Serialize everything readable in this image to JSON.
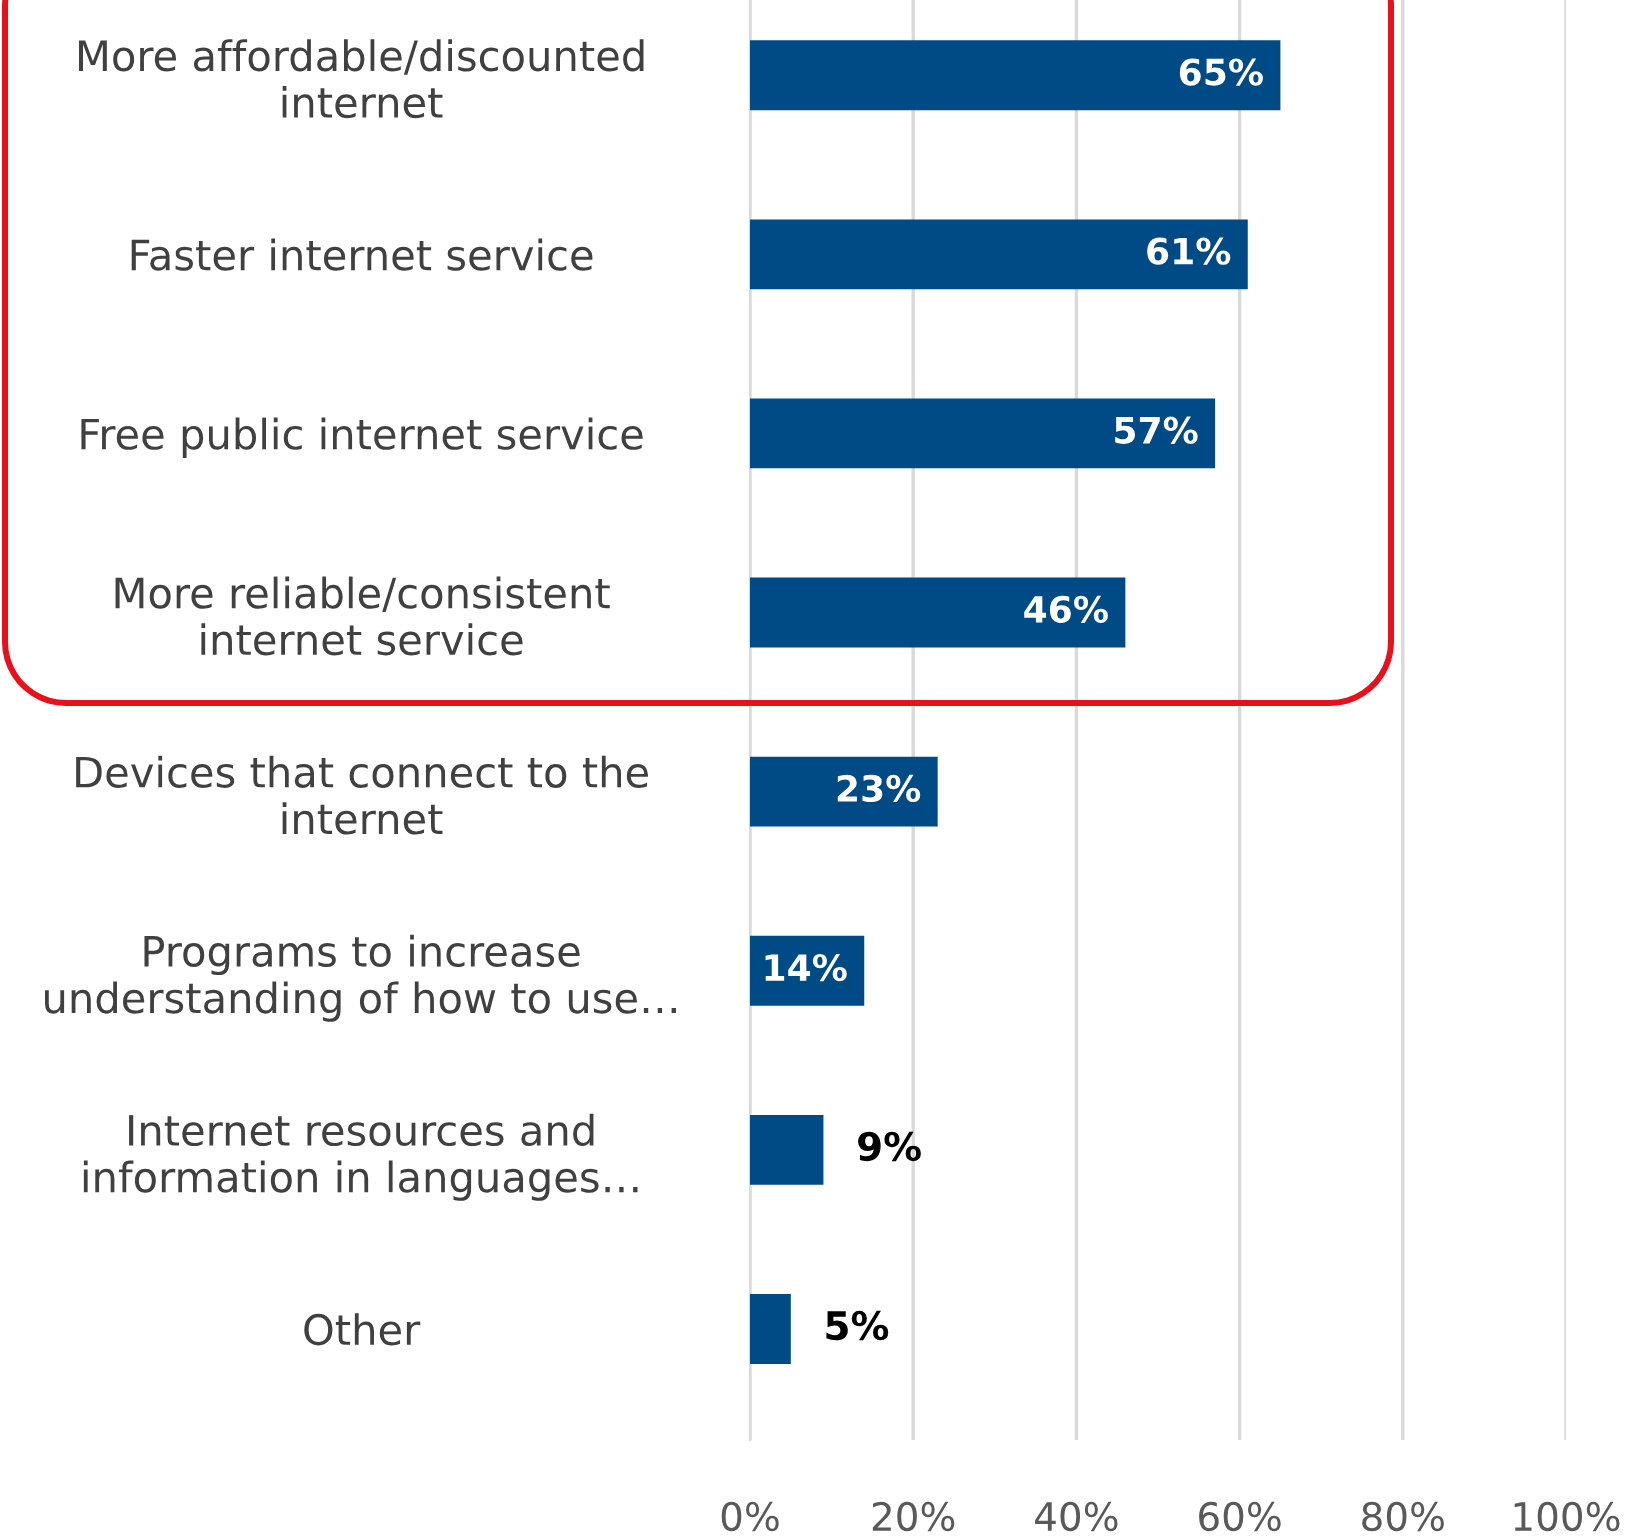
{
  "chart_data": {
    "type": "bar",
    "orientation": "horizontal",
    "categories": [
      "More affordable/discounted\ninternet",
      "Faster internet service",
      "Free public internet service",
      "More reliable/consistent\ninternet service",
      "Devices that connect to the\ninternet",
      "Programs to increase\nunderstanding of how to use…",
      "Internet resources and\ninformation in languages…",
      "Other"
    ],
    "values": [
      65,
      61,
      57,
      46,
      23,
      14,
      9,
      5
    ],
    "value_labels": [
      "65%",
      "61%",
      "57%",
      "46%",
      "23%",
      "14%",
      "9%",
      "5%"
    ],
    "color": "#004a86",
    "xlim": [
      0,
      100
    ],
    "xticks": [
      {
        "value": 0,
        "label": "0%"
      },
      {
        "value": 20,
        "label": "20%"
      },
      {
        "value": 40,
        "label": "40%"
      },
      {
        "value": 60,
        "label": "60%"
      },
      {
        "value": 80,
        "label": "80%"
      },
      {
        "value": 100,
        "label": "100%"
      }
    ],
    "grid": "x"
  }
}
